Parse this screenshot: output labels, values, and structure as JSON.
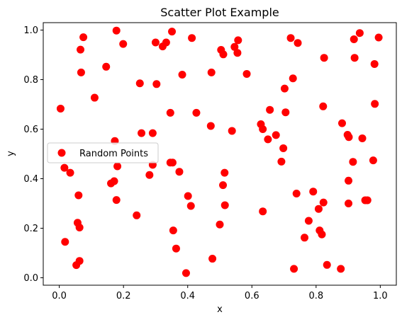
{
  "chart_data": {
    "type": "scatter",
    "title": "Scatter Plot Example",
    "xlabel": "x",
    "ylabel": "y",
    "xlim": [
      -0.05,
      1.05
    ],
    "ylim": [
      -0.03,
      1.03
    ],
    "xticks": [
      0.0,
      0.2,
      0.4,
      0.6,
      0.8,
      1.0
    ],
    "xtick_labels": [
      "0.0",
      "0.2",
      "0.4",
      "0.6",
      "0.8",
      "1.0"
    ],
    "yticks": [
      0.0,
      0.2,
      0.4,
      0.6,
      0.8,
      1.0
    ],
    "ytick_labels": [
      "0.0",
      "0.2",
      "0.4",
      "0.6",
      "0.8",
      "1.0"
    ],
    "grid": false,
    "legend": {
      "position": "center-left",
      "entries": [
        "Random Points"
      ]
    },
    "series": [
      {
        "name": "Random Points",
        "color": "#ff0000",
        "points": [
          [
            0.004,
            0.683
          ],
          [
            0.016,
            0.444
          ],
          [
            0.018,
            0.145
          ],
          [
            0.034,
            0.424
          ],
          [
            0.053,
            0.051
          ],
          [
            0.057,
            0.222
          ],
          [
            0.06,
            0.333
          ],
          [
            0.063,
            0.203
          ],
          [
            0.063,
            0.068
          ],
          [
            0.066,
            0.921
          ],
          [
            0.068,
            0.829
          ],
          [
            0.075,
            0.971
          ],
          [
            0.11,
            0.727
          ],
          [
            0.146,
            0.852
          ],
          [
            0.161,
            0.381
          ],
          [
            0.171,
            0.39
          ],
          [
            0.173,
            0.552
          ],
          [
            0.178,
            0.998
          ],
          [
            0.178,
            0.314
          ],
          [
            0.181,
            0.45
          ],
          [
            0.199,
            0.944
          ],
          [
            0.241,
            0.252
          ],
          [
            0.251,
            0.785
          ],
          [
            0.256,
            0.584
          ],
          [
            0.281,
            0.415
          ],
          [
            0.291,
            0.584
          ],
          [
            0.291,
            0.456
          ],
          [
            0.3,
            0.95
          ],
          [
            0.303,
            0.782
          ],
          [
            0.322,
            0.934
          ],
          [
            0.333,
            0.95
          ],
          [
            0.346,
            0.666
          ],
          [
            0.346,
            0.465
          ],
          [
            0.351,
            0.994
          ],
          [
            0.353,
            0.465
          ],
          [
            0.355,
            0.191
          ],
          [
            0.364,
            0.118
          ],
          [
            0.374,
            0.428
          ],
          [
            0.383,
            0.82
          ],
          [
            0.395,
            0.019
          ],
          [
            0.401,
            0.33
          ],
          [
            0.41,
            0.29
          ],
          [
            0.413,
            0.968
          ],
          [
            0.427,
            0.666
          ],
          [
            0.472,
            0.613
          ],
          [
            0.474,
            0.829
          ],
          [
            0.477,
            0.077
          ],
          [
            0.5,
            0.215
          ],
          [
            0.504,
            0.92
          ],
          [
            0.51,
            0.374
          ],
          [
            0.511,
            0.902
          ],
          [
            0.515,
            0.424
          ],
          [
            0.516,
            0.293
          ],
          [
            0.538,
            0.593
          ],
          [
            0.546,
            0.932
          ],
          [
            0.555,
            0.908
          ],
          [
            0.557,
            0.959
          ],
          [
            0.584,
            0.823
          ],
          [
            0.628,
            0.62
          ],
          [
            0.634,
            0.6
          ],
          [
            0.634,
            0.268
          ],
          [
            0.65,
            0.559
          ],
          [
            0.656,
            0.678
          ],
          [
            0.675,
            0.576
          ],
          [
            0.692,
            0.469
          ],
          [
            0.698,
            0.523
          ],
          [
            0.702,
            0.764
          ],
          [
            0.705,
            0.668
          ],
          [
            0.721,
            0.968
          ],
          [
            0.728,
            0.805
          ],
          [
            0.731,
            0.036
          ],
          [
            0.739,
            0.34
          ],
          [
            0.743,
            0.948
          ],
          [
            0.764,
            0.162
          ],
          [
            0.777,
            0.23
          ],
          [
            0.791,
            0.348
          ],
          [
            0.808,
            0.278
          ],
          [
            0.811,
            0.191
          ],
          [
            0.818,
            0.175
          ],
          [
            0.822,
            0.692
          ],
          [
            0.823,
            0.304
          ],
          [
            0.825,
            0.888
          ],
          [
            0.834,
            0.052
          ],
          [
            0.877,
            0.036
          ],
          [
            0.881,
            0.624
          ],
          [
            0.898,
            0.577
          ],
          [
            0.901,
            0.3
          ],
          [
            0.901,
            0.392
          ],
          [
            0.902,
            0.568
          ],
          [
            0.915,
            0.468
          ],
          [
            0.918,
            0.963
          ],
          [
            0.92,
            0.888
          ],
          [
            0.936,
            0.988
          ],
          [
            0.944,
            0.563
          ],
          [
            0.953,
            0.313
          ],
          [
            0.96,
            0.313
          ],
          [
            0.978,
            0.474
          ],
          [
            0.982,
            0.863
          ],
          [
            0.983,
            0.702
          ],
          [
            0.995,
            0.97
          ]
        ]
      }
    ]
  }
}
